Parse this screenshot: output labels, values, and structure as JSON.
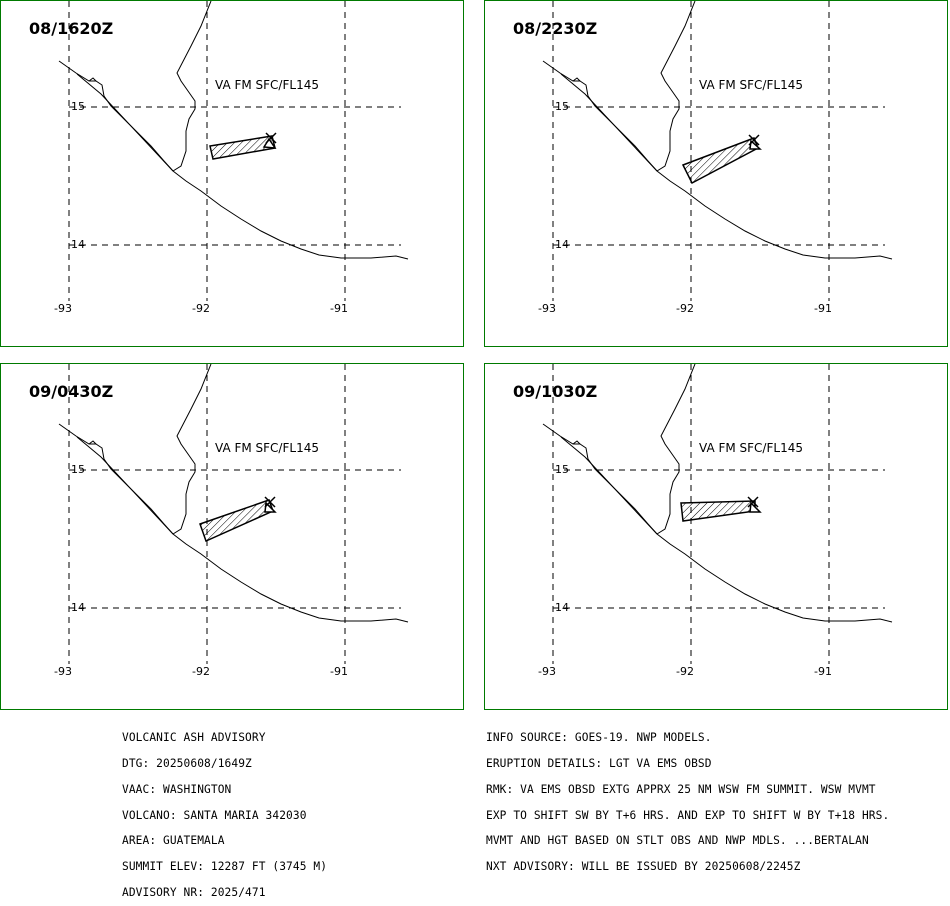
{
  "map_labels": {
    "lat_ticks": [
      "15",
      "14"
    ],
    "lon_ticks": [
      "-93",
      "-92",
      "-91"
    ]
  },
  "panels": [
    {
      "time": "08/1620Z",
      "level": "VA FM SFC/FL145"
    },
    {
      "time": "08/2230Z",
      "level": "VA FM SFC/FL145"
    },
    {
      "time": "09/0430Z",
      "level": "VA FM SFC/FL145"
    },
    {
      "time": "09/1030Z",
      "level": "VA FM SFC/FL145"
    }
  ],
  "advisory_left": [
    "VOLCANIC ASH ADVISORY",
    "DTG: 20250608/1649Z",
    "VAAC: WASHINGTON",
    "VOLCANO: SANTA MARIA 342030",
    "AREA: GUATEMALA",
    "SUMMIT ELEV: 12287 FT (3745 M)",
    "ADVISORY NR: 2025/471"
  ],
  "advisory_right": [
    "INFO SOURCE: GOES-19. NWP MODELS.",
    "ERUPTION DETAILS: LGT VA EMS OBSD",
    "RMK: VA EMS OBSD EXTG APPRX 25 NM WSW FM SUMMIT. WSW MVMT",
    "EXP TO SHIFT SW BY T+6 HRS. AND EXP TO SHIFT W BY T+18 HRS.",
    "MVMT AND HGT BASED ON STLT OBS AND NWP MDLS. ...BERTALAN",
    "NXT ADVISORY: WILL BE ISSUED BY 20250608/2245Z"
  ]
}
